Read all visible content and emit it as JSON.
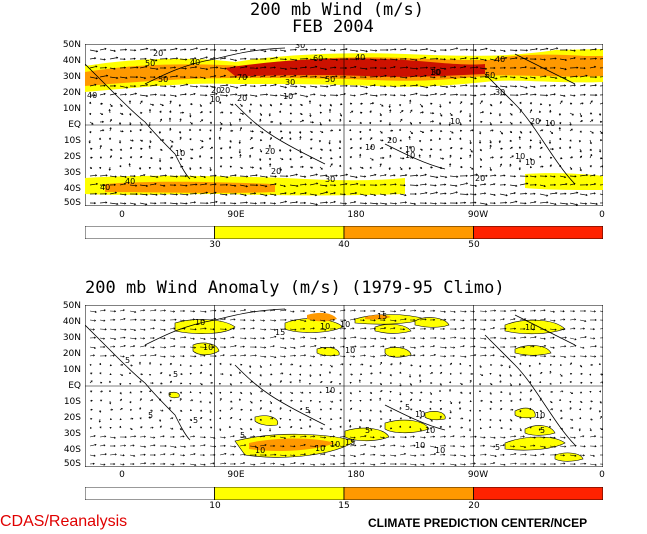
{
  "top": {
    "title_line1": "200 mb Wind (m/s)",
    "title_line2": "FEB 2004",
    "lat_labels": [
      "50N",
      "40N",
      "30N",
      "20N",
      "10N",
      "EQ",
      "10S",
      "20S",
      "30S",
      "40S",
      "50S"
    ],
    "lon_labels": [
      "0",
      "90E",
      "180",
      "90W",
      "0"
    ],
    "colorbar": {
      "thresholds": [
        "30",
        "40",
        "50"
      ],
      "colors": [
        "#ffffff",
        "#ffff00",
        "#ff9900",
        "#ff2200"
      ]
    },
    "contour_labels": [
      "20",
      "40",
      "50",
      "30",
      "40",
      "40",
      "60",
      "50",
      "30",
      "40",
      "50",
      "20",
      "70",
      "30",
      "20",
      "10",
      "10",
      "10",
      "30",
      "50",
      "20",
      "10",
      "20",
      "10",
      "20",
      "10",
      "10",
      "10",
      "20",
      "10",
      "20",
      "20",
      "10",
      "10",
      "40",
      "40",
      "30"
    ]
  },
  "bottom": {
    "title": "200 mb Wind Anomaly (m/s) (1979-95 Climo)",
    "lat_labels": [
      "50N",
      "40N",
      "30N",
      "20N",
      "10N",
      "EQ",
      "10S",
      "20S",
      "30S",
      "40S",
      "50S"
    ],
    "lon_labels": [
      "0",
      "90E",
      "180",
      "90W",
      "0"
    ],
    "colorbar": {
      "thresholds": [
        "10",
        "15",
        "20"
      ],
      "colors": [
        "#ffffff",
        "#ffff00",
        "#ff9900",
        "#ff2200"
      ]
    },
    "contour_labels": [
      "10",
      "10",
      "15",
      "10",
      "15",
      "10",
      "10",
      "10",
      "5",
      "5",
      "5",
      "5",
      "5",
      "5",
      "10",
      "5",
      "5",
      "10",
      "10",
      "10",
      "10",
      "10",
      "10",
      "15",
      "10",
      "5",
      "10",
      "5"
    ]
  },
  "footer": {
    "left": "CDAS/Reanalysis",
    "right": "CLIMATE PREDICTION CENTER/NCEP"
  }
}
